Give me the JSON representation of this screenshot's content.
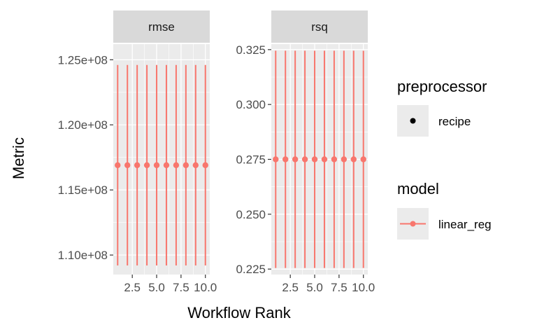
{
  "chart_data": {
    "type": "scatter",
    "xlabel": "Workflow Rank",
    "ylabel": "Metric",
    "x": [
      1,
      2,
      3,
      4,
      5,
      6,
      7,
      8,
      9,
      10
    ],
    "x_tick_labels": [
      "2.5",
      "5.0",
      "7.5",
      "10.0"
    ],
    "x_ticks": [
      2.5,
      5.0,
      7.5,
      10.0
    ],
    "xlim": [
      0.55,
      10.45
    ],
    "grid": true,
    "legend_position": "right",
    "series_color": "#F8766D",
    "panels": [
      {
        "strip": "rmse",
        "ylim": [
          108500000,
          126200000
        ],
        "y_ticks": [
          110000000,
          115000000,
          120000000,
          125000000
        ],
        "y_tick_labels": [
          "1.10e+08",
          "1.15e+08",
          "1.20e+08",
          "1.25e+08"
        ],
        "values": [
          116900000,
          116900000,
          116900000,
          116900000,
          116900000,
          116900000,
          116900000,
          116900000,
          116900000,
          116900000
        ],
        "lower": [
          109200000,
          109200000,
          109200000,
          109200000,
          109200000,
          109200000,
          109200000,
          109200000,
          109200000,
          109200000
        ],
        "upper": [
          124600000,
          124600000,
          124600000,
          124600000,
          124600000,
          124600000,
          124600000,
          124600000,
          124600000,
          124600000
        ]
      },
      {
        "strip": "rsq",
        "ylim": [
          0.2225,
          0.3275
        ],
        "y_ticks": [
          0.225,
          0.25,
          0.275,
          0.3,
          0.325
        ],
        "y_tick_labels": [
          "0.225",
          "0.250",
          "0.275",
          "0.300",
          "0.325"
        ],
        "values": [
          0.275,
          0.275,
          0.275,
          0.275,
          0.275,
          0.275,
          0.275,
          0.275,
          0.275,
          0.275
        ],
        "lower": [
          0.2255,
          0.2255,
          0.2255,
          0.2255,
          0.2255,
          0.2255,
          0.2255,
          0.2255,
          0.2255,
          0.2255
        ],
        "upper": [
          0.3245,
          0.3245,
          0.3245,
          0.3245,
          0.3245,
          0.3245,
          0.3245,
          0.3245,
          0.3245,
          0.3245
        ]
      }
    ],
    "legends": [
      {
        "title": "preprocessor",
        "items": [
          {
            "label": "recipe",
            "key": "point-black"
          }
        ]
      },
      {
        "title": "model",
        "items": [
          {
            "label": "linear_reg",
            "key": "line-point-red"
          }
        ]
      }
    ]
  }
}
